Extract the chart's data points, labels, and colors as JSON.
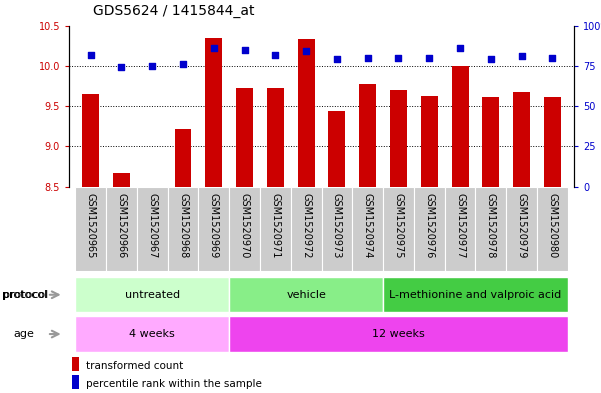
{
  "title": "GDS5624 / 1415844_at",
  "samples": [
    "GSM1520965",
    "GSM1520966",
    "GSM1520967",
    "GSM1520968",
    "GSM1520969",
    "GSM1520970",
    "GSM1520971",
    "GSM1520972",
    "GSM1520973",
    "GSM1520974",
    "GSM1520975",
    "GSM1520976",
    "GSM1520977",
    "GSM1520978",
    "GSM1520979",
    "GSM1520980"
  ],
  "transformed_count": [
    9.65,
    8.67,
    8.5,
    9.22,
    10.35,
    9.72,
    9.72,
    10.33,
    9.44,
    9.78,
    9.7,
    9.63,
    10.0,
    9.61,
    9.67,
    9.61
  ],
  "percentile_rank": [
    82,
    74,
    75,
    76,
    86,
    85,
    82,
    84,
    79,
    80,
    80,
    80,
    86,
    79,
    81,
    80
  ],
  "ylim_left": [
    8.5,
    10.5
  ],
  "ylim_right": [
    0,
    100
  ],
  "yticks_left": [
    8.5,
    9.0,
    9.5,
    10.0,
    10.5
  ],
  "yticks_right": [
    0,
    25,
    50,
    75,
    100
  ],
  "bar_color": "#cc0000",
  "dot_color": "#0000cc",
  "protocol_groups": [
    {
      "label": "untreated",
      "start": 0,
      "end": 4,
      "color": "#ccffcc"
    },
    {
      "label": "vehicle",
      "start": 5,
      "end": 9,
      "color": "#88ee88"
    },
    {
      "label": "L-methionine and valproic acid",
      "start": 10,
      "end": 15,
      "color": "#44cc44"
    }
  ],
  "age_groups": [
    {
      "label": "4 weeks",
      "start": 0,
      "end": 4,
      "color": "#ffaaff"
    },
    {
      "label": "12 weeks",
      "start": 5,
      "end": 15,
      "color": "#ee44ee"
    }
  ],
  "legend_items": [
    {
      "label": "transformed count",
      "color": "#cc0000"
    },
    {
      "label": "percentile rank within the sample",
      "color": "#0000cc"
    }
  ],
  "protocol_label": "protocol",
  "age_label": "age",
  "background_color": "#ffffff",
  "title_fontsize": 10,
  "tick_fontsize": 7,
  "label_fontsize": 8,
  "xtick_bg_color": "#cccccc",
  "arrow_color": "#999999"
}
